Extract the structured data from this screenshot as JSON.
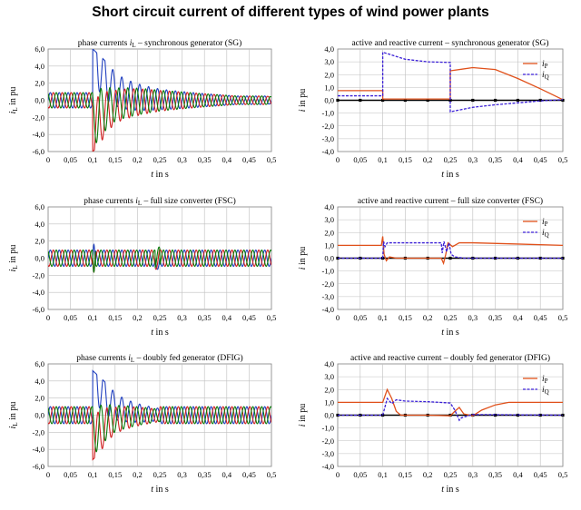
{
  "title": "Short circuit current of different types of wind power plants",
  "colors": {
    "phase_a": "#1f3fbf",
    "phase_b": "#d02020",
    "phase_c": "#0a7a0a",
    "iP": "#e0501a",
    "iQ": "#3a1fd6",
    "grid": "#bfbfbf"
  },
  "chart_data": [
    {
      "type": "line",
      "title_text": "phase currents ",
      "title_var": "i",
      "title_sub": "L",
      "title_rest": " – synchronous generator (SG)",
      "xlabel": "t in s",
      "ylabel": "i_L in pu",
      "xlim": [
        0,
        0.5
      ],
      "ylim": [
        -6,
        6
      ],
      "xticks": [
        "0",
        "0,05",
        "0,1",
        "0,15",
        "0,2",
        "0,25",
        "0,3",
        "0,35",
        "0,4",
        "0,45",
        "0,5"
      ],
      "yticks": [
        "6,0",
        "4,0",
        "2,0",
        "0,0",
        "-2,0",
        "-4,0",
        "-6,0"
      ],
      "grid": true,
      "series": [
        {
          "phase": "a",
          "steady_amplitude": 0.9,
          "fault_start": 0.1,
          "fault_end": 0.5,
          "fault_peak_envelope": [
            [
              0.1,
              6.0
            ],
            [
              0.15,
              3.5
            ],
            [
              0.25,
              2.2
            ],
            [
              0.35,
              1.4
            ],
            [
              0.5,
              0.4
            ]
          ]
        },
        {
          "phase": "b",
          "steady_amplitude": 0.9
        },
        {
          "phase": "c",
          "steady_amplitude": 0.9
        }
      ]
    },
    {
      "type": "line",
      "title_text": "active and reactive current – synchronous generator (SG)",
      "xlabel": "t in s",
      "ylabel": "i in pu",
      "xlim": [
        0,
        0.5
      ],
      "ylim": [
        -4,
        4
      ],
      "xticks": [
        "0",
        "0,05",
        "0,1",
        "0,15",
        "0,2",
        "0,25",
        "0,3",
        "0,35",
        "0,4",
        "0,45",
        "0,5"
      ],
      "yticks": [
        "4,0",
        "3,0",
        "2,0",
        "1,0",
        "0,0",
        "-1,0",
        "-2,0",
        "-3,0",
        "-4,0"
      ],
      "grid": true,
      "legend": "top-right",
      "series": [
        {
          "name": "i_P",
          "points": [
            [
              0,
              0.75
            ],
            [
              0.1,
              0.75
            ],
            [
              0.1,
              0.1
            ],
            [
              0.25,
              0.1
            ],
            [
              0.25,
              2.3
            ],
            [
              0.3,
              2.55
            ],
            [
              0.35,
              2.4
            ],
            [
              0.4,
              1.7
            ],
            [
              0.45,
              0.9
            ],
            [
              0.5,
              0.05
            ]
          ]
        },
        {
          "name": "i_Q",
          "points": [
            [
              0,
              0.35
            ],
            [
              0.1,
              0.35
            ],
            [
              0.1,
              3.75
            ],
            [
              0.15,
              3.2
            ],
            [
              0.2,
              3.0
            ],
            [
              0.25,
              2.95
            ],
            [
              0.25,
              -0.9
            ],
            [
              0.3,
              -0.55
            ],
            [
              0.35,
              -0.35
            ],
            [
              0.4,
              -0.2
            ],
            [
              0.45,
              -0.05
            ],
            [
              0.5,
              0.05
            ]
          ]
        }
      ]
    },
    {
      "type": "line",
      "title_text": "phase currents ",
      "title_var": "i",
      "title_sub": "L",
      "title_rest": " – full size converter (FSC)",
      "xlabel": "t in s",
      "ylabel": "i_L in pu",
      "xlim": [
        0,
        0.5
      ],
      "ylim": [
        -6,
        6
      ],
      "xticks": [
        "0",
        "0,05",
        "0,1",
        "0,15",
        "0,2",
        "0,25",
        "0,3",
        "0,35",
        "0,4",
        "0,45",
        "0,5"
      ],
      "yticks": [
        "6,0",
        "4,0",
        "2,0",
        "0,0",
        "-2,0",
        "-4,0",
        "-6,0"
      ],
      "grid": true,
      "series": [
        {
          "phase": "a",
          "steady_amplitude": 0.95,
          "fault_start": 0.1,
          "fault_end": 0.25,
          "fault_spike": 1.6
        },
        {
          "phase": "b",
          "steady_amplitude": 0.95
        },
        {
          "phase": "c",
          "steady_amplitude": 0.95
        }
      ]
    },
    {
      "type": "line",
      "title_text": "active and reactive current – full size converter  (FSC)",
      "xlabel": "t in s",
      "ylabel": "i in pu",
      "xlim": [
        0,
        0.5
      ],
      "ylim": [
        -4,
        4
      ],
      "xticks": [
        "0",
        "0,05",
        "0,1",
        "0,15",
        "0,2",
        "0,25",
        "0,3",
        "0,35",
        "0,4",
        "0,45",
        "0,5"
      ],
      "yticks": [
        "4,0",
        "3,0",
        "2,0",
        "1,0",
        "0,0",
        "-1,0",
        "-2,0",
        "-3,0",
        "-4,0"
      ],
      "grid": true,
      "legend": "top-right",
      "series": [
        {
          "name": "i_P",
          "points": [
            [
              0,
              1.0
            ],
            [
              0.097,
              1.0
            ],
            [
              0.1,
              1.7
            ],
            [
              0.103,
              0.3
            ],
            [
              0.108,
              -0.2
            ],
            [
              0.115,
              0.1
            ],
            [
              0.13,
              0.0
            ],
            [
              0.23,
              0.0
            ],
            [
              0.235,
              -0.4
            ],
            [
              0.24,
              0.3
            ],
            [
              0.245,
              1.2
            ],
            [
              0.255,
              0.9
            ],
            [
              0.27,
              1.2
            ],
            [
              0.3,
              1.2
            ],
            [
              0.4,
              1.1
            ],
            [
              0.5,
              1.0
            ]
          ]
        },
        {
          "name": "i_Q",
          "points": [
            [
              0,
              0.0
            ],
            [
              0.1,
              0.0
            ],
            [
              0.102,
              1.3
            ],
            [
              0.105,
              0.9
            ],
            [
              0.11,
              1.2
            ],
            [
              0.13,
              1.2
            ],
            [
              0.23,
              1.2
            ],
            [
              0.232,
              0.4
            ],
            [
              0.236,
              1.3
            ],
            [
              0.242,
              0.5
            ],
            [
              0.247,
              1.2
            ],
            [
              0.252,
              0.3
            ],
            [
              0.26,
              0.1
            ],
            [
              0.28,
              0.0
            ],
            [
              0.5,
              0.0
            ]
          ]
        }
      ]
    },
    {
      "type": "line",
      "title_text": "phase currents ",
      "title_var": "i",
      "title_sub": "L",
      "title_rest": " – doubly fed generator (DFIG)",
      "xlabel": "t in s",
      "ylabel": "i_L in pu",
      "xlim": [
        0,
        0.5
      ],
      "ylim": [
        -6,
        6
      ],
      "xticks": [
        "0",
        "0,05",
        "0,1",
        "0,15",
        "0,2",
        "0,25",
        "0,3",
        "0,35",
        "0,4",
        "0,45",
        "0,5"
      ],
      "yticks": [
        "6,0",
        "4,0",
        "2,0",
        "0,0",
        "-2,0",
        "-4,0",
        "-6,0"
      ],
      "grid": true,
      "series": [
        {
          "phase": "a",
          "steady_amplitude": 1.0,
          "fault_start": 0.1,
          "fault_end": 0.25,
          "fault_peak_envelope": [
            [
              0.1,
              5.2
            ],
            [
              0.15,
              2.8
            ],
            [
              0.2,
              2.0
            ],
            [
              0.25,
              1.3
            ],
            [
              0.3,
              0.5
            ]
          ]
        },
        {
          "phase": "b",
          "steady_amplitude": 1.0
        },
        {
          "phase": "c",
          "steady_amplitude": 1.0
        }
      ]
    },
    {
      "type": "line",
      "title_text": "active and reactive current – doubly fed generator  (DFIG)",
      "xlabel": "t in s",
      "ylabel": "i in pu",
      "xlim": [
        0,
        0.5
      ],
      "ylim": [
        -4,
        4
      ],
      "xticks": [
        "0",
        "0,05",
        "0,1",
        "0,15",
        "0,2",
        "0,25",
        "0,3",
        "0,35",
        "0,4",
        "0,45",
        "0,5"
      ],
      "yticks": [
        "4,0",
        "3,0",
        "2,0",
        "1,0",
        "0,0",
        "-1,0",
        "-2,0",
        "-3,0",
        "-4,0"
      ],
      "grid": true,
      "legend": "top-right",
      "series": [
        {
          "name": "i_P",
          "points": [
            [
              0,
              1.0
            ],
            [
              0.1,
              1.0
            ],
            [
              0.11,
              2.0
            ],
            [
              0.12,
              1.3
            ],
            [
              0.13,
              0.3
            ],
            [
              0.14,
              0.0
            ],
            [
              0.2,
              0.0
            ],
            [
              0.25,
              -0.05
            ],
            [
              0.26,
              0.3
            ],
            [
              0.27,
              0.6
            ],
            [
              0.28,
              0.1
            ],
            [
              0.3,
              -0.05
            ],
            [
              0.32,
              0.4
            ],
            [
              0.35,
              0.8
            ],
            [
              0.38,
              1.0
            ],
            [
              0.5,
              1.0
            ]
          ]
        },
        {
          "name": "i_Q",
          "points": [
            [
              0,
              0.0
            ],
            [
              0.1,
              0.0
            ],
            [
              0.11,
              1.3
            ],
            [
              0.12,
              0.9
            ],
            [
              0.13,
              1.2
            ],
            [
              0.15,
              1.1
            ],
            [
              0.2,
              1.05
            ],
            [
              0.25,
              0.95
            ],
            [
              0.26,
              0.4
            ],
            [
              0.27,
              -0.4
            ],
            [
              0.275,
              -0.2
            ],
            [
              0.3,
              0.05
            ],
            [
              0.5,
              0.0
            ]
          ]
        }
      ]
    }
  ]
}
